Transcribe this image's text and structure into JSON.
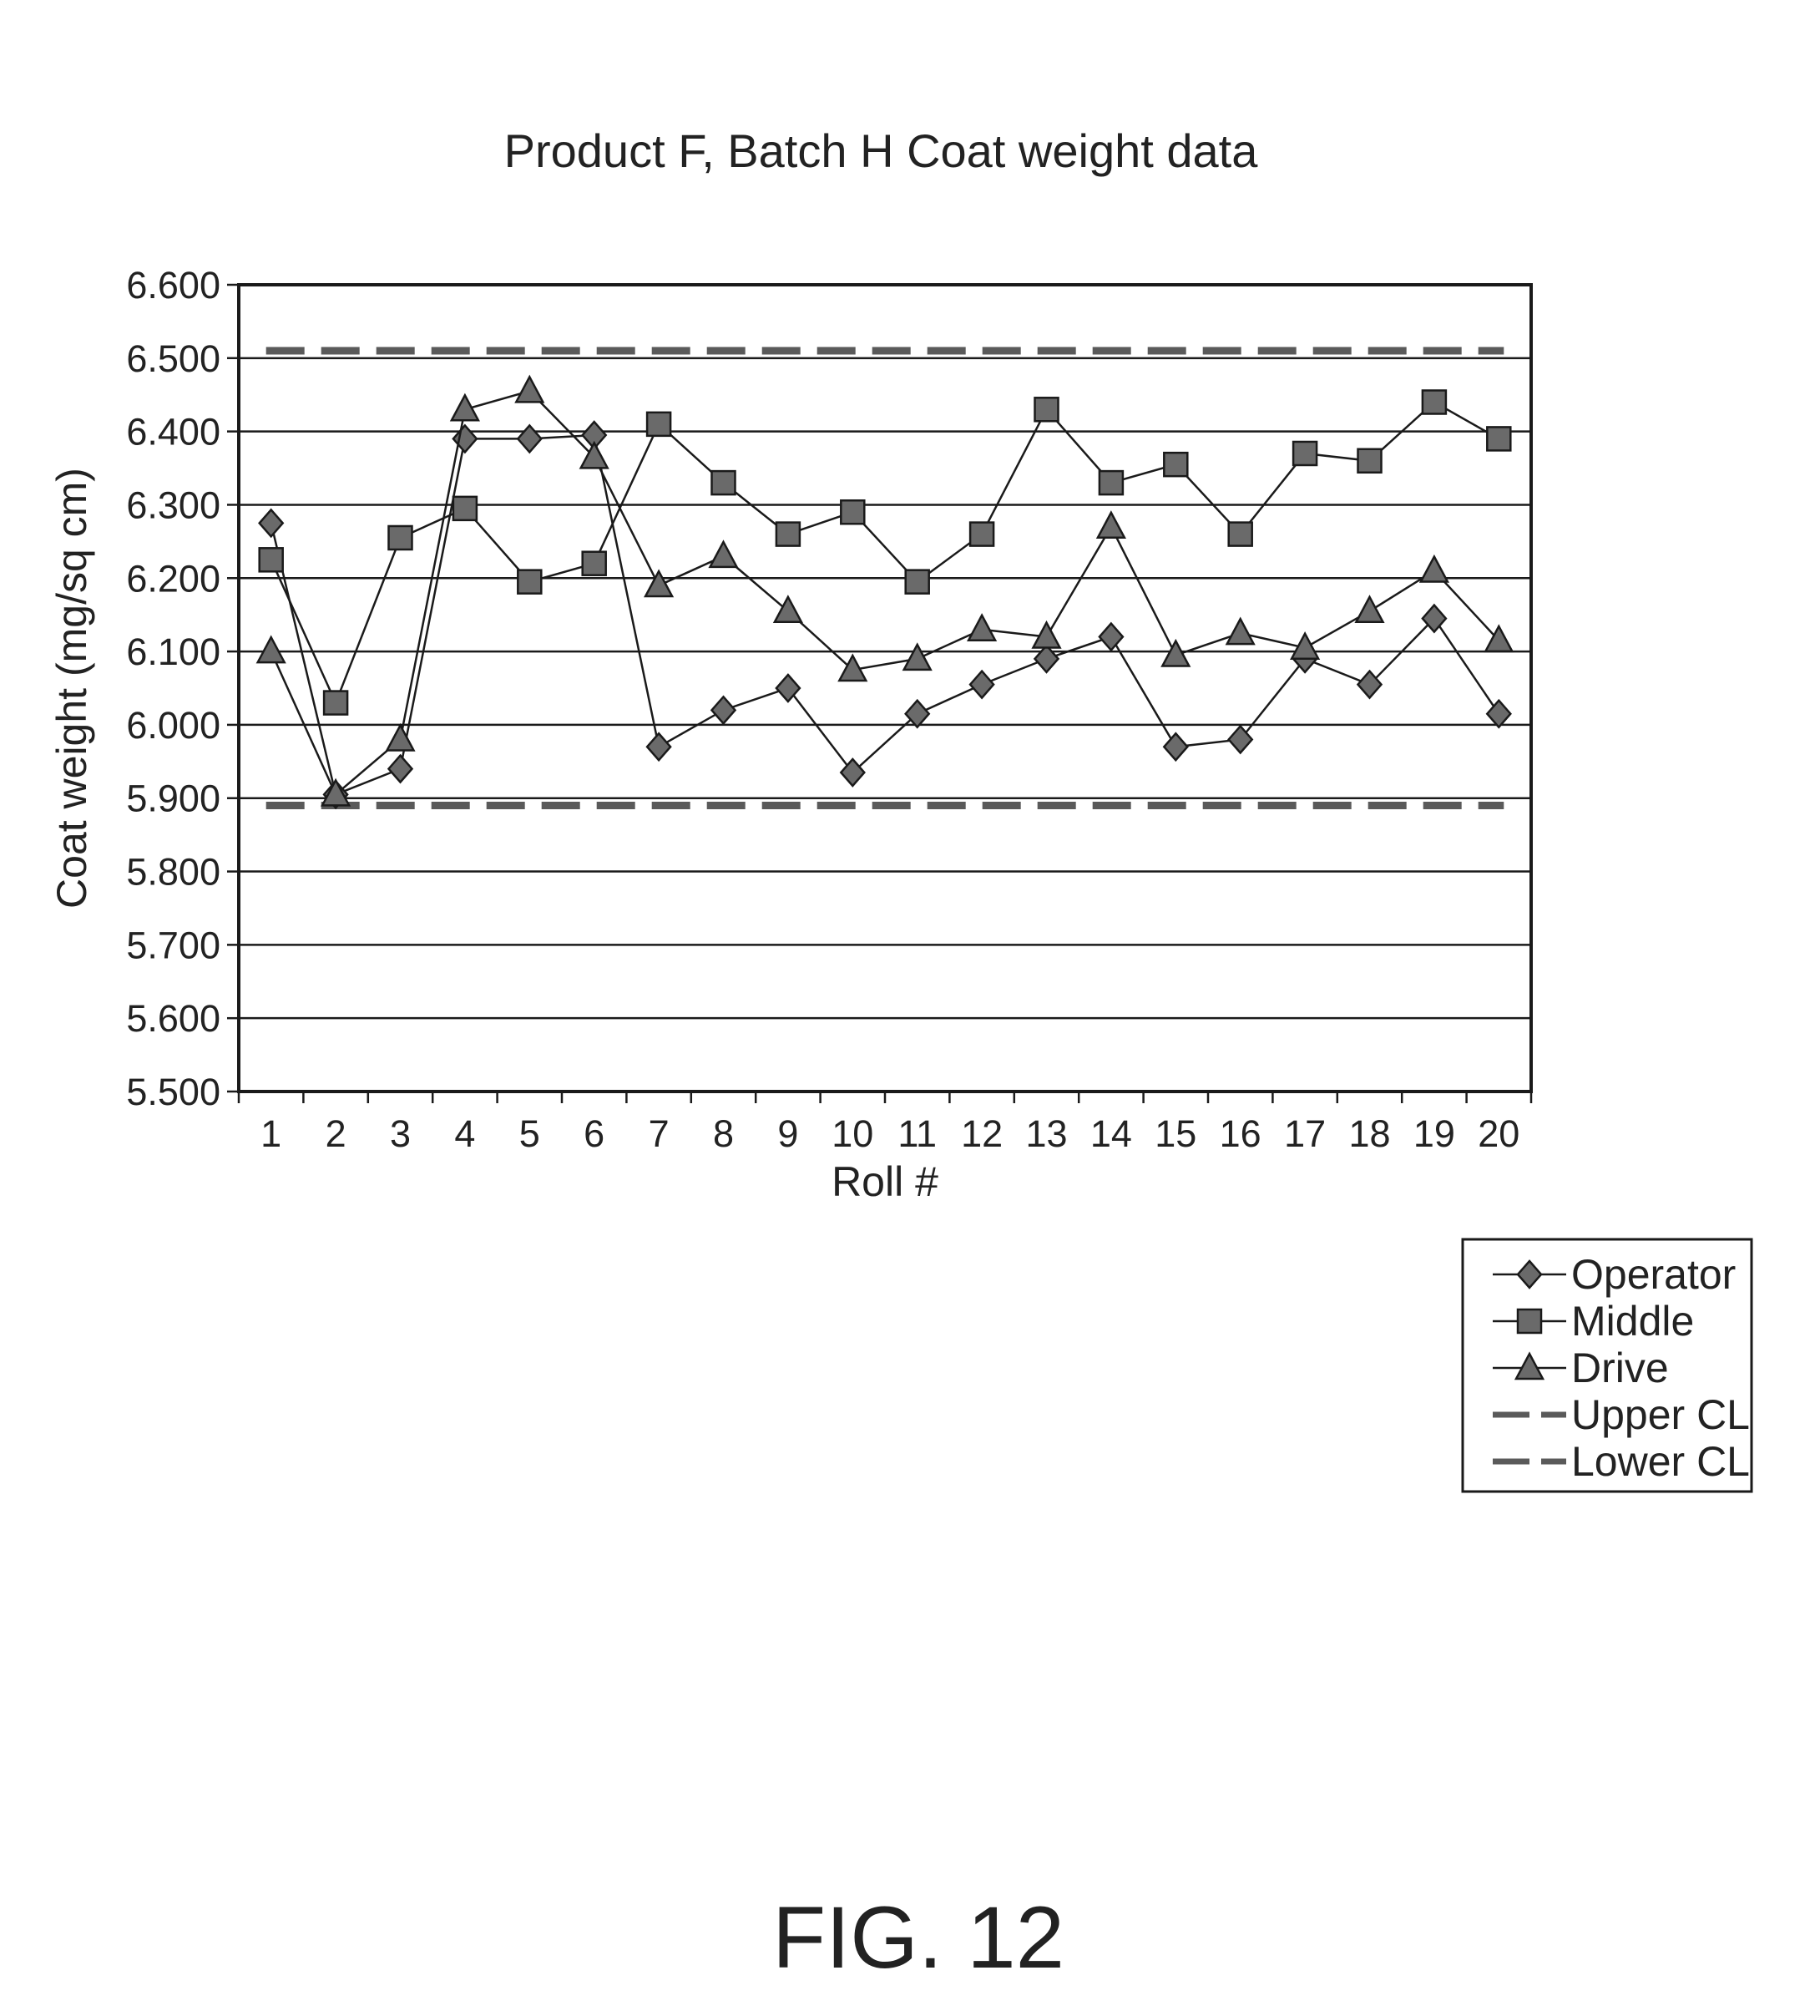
{
  "chart_data": {
    "type": "line",
    "title": "Product F, Batch H Coat weight data",
    "xlabel": "Roll #",
    "ylabel": "Coat weight (mg/sq cm)",
    "ylim": [
      5.5,
      6.6
    ],
    "yticks": [
      "5.500",
      "5.600",
      "5.700",
      "5.800",
      "5.900",
      "6.000",
      "6.100",
      "6.200",
      "6.300",
      "6.400",
      "6.500",
      "6.600"
    ],
    "categories": [
      "1",
      "2",
      "3",
      "4",
      "5",
      "6",
      "7",
      "8",
      "9",
      "10",
      "11",
      "12",
      "13",
      "14",
      "15",
      "16",
      "17",
      "18",
      "19",
      "20"
    ],
    "grid": true,
    "legend_position": "bottom-right, outside plot",
    "series": [
      {
        "name": "Operator",
        "marker": "diamond",
        "values": [
          6.275,
          5.905,
          5.94,
          6.39,
          6.39,
          6.395,
          5.97,
          6.02,
          6.05,
          5.935,
          6.015,
          6.055,
          6.09,
          6.12,
          5.97,
          5.98,
          6.09,
          6.055,
          6.145,
          6.015
        ]
      },
      {
        "name": "Middle",
        "marker": "square",
        "values": [
          6.225,
          6.03,
          6.255,
          6.295,
          6.195,
          6.22,
          6.41,
          6.33,
          6.26,
          6.29,
          6.195,
          6.26,
          6.43,
          6.33,
          6.355,
          6.26,
          6.37,
          6.36,
          6.44,
          6.39
        ]
      },
      {
        "name": "Drive",
        "marker": "triangle",
        "values": [
          6.1,
          5.905,
          5.98,
          6.43,
          6.455,
          6.365,
          6.19,
          6.23,
          6.155,
          6.075,
          6.09,
          6.13,
          6.12,
          6.27,
          6.095,
          6.125,
          6.105,
          6.155,
          6.21,
          6.115
        ]
      },
      {
        "name": "Upper CL",
        "marker": "none",
        "style": "dashed",
        "value": 6.51
      },
      {
        "name": "Lower CL",
        "marker": "none",
        "style": "dashed",
        "value": 5.89
      }
    ]
  },
  "figure_label": "FIG. 12"
}
